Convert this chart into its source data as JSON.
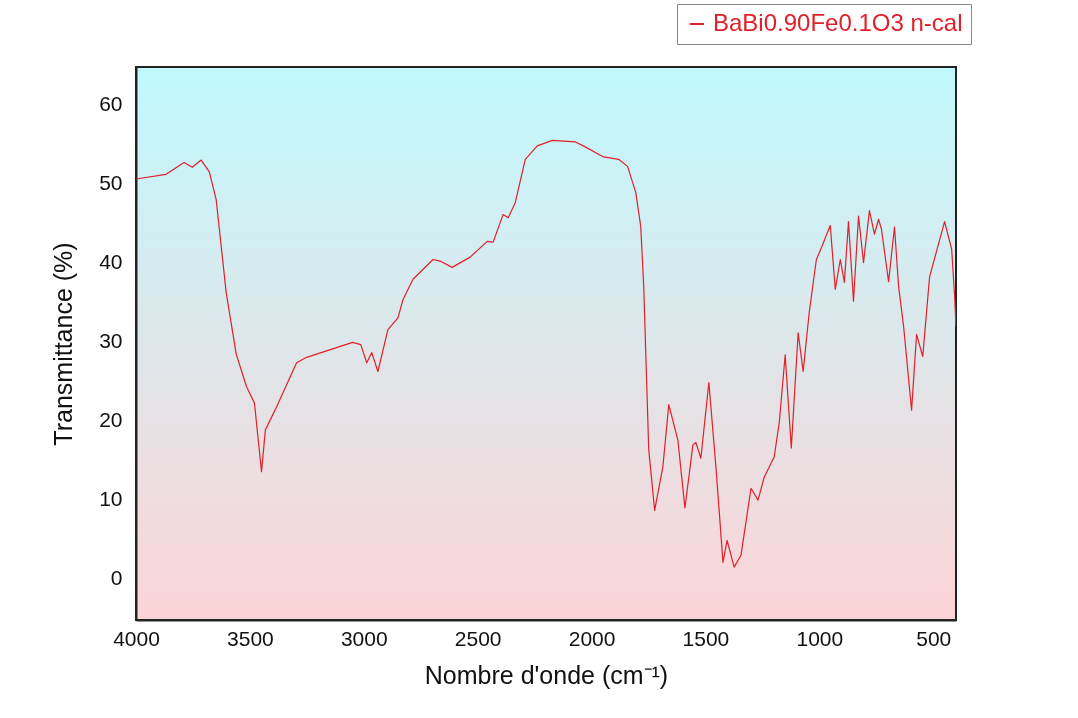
{
  "chart_data": {
    "type": "line",
    "xlabel": "Nombre d'onde (cm⁻¹)",
    "ylabel": "Transmittance (%)",
    "xlim": [
      4000,
      400
    ],
    "xticks": [
      4000,
      3500,
      3000,
      2500,
      2000,
      1500,
      1000,
      500
    ],
    "ylim": [
      -5.3,
      64.8
    ],
    "yticks": [
      0,
      10,
      20,
      30,
      40,
      50,
      60
    ],
    "grid": false,
    "legend": "top right",
    "series": [
      {
        "name": "BaBi0.90Fe0.1O3 n-cal",
        "color": "#e0202a",
        "x": [
          4000,
          3868,
          3789,
          3753,
          3714,
          3678,
          3648,
          3604,
          3560,
          3515,
          3480,
          3449,
          3432,
          3383,
          3295,
          3251,
          3049,
          3013,
          2987,
          2965,
          2938,
          2894,
          2850,
          2828,
          2784,
          2696,
          2665,
          2612,
          2533,
          2458,
          2432,
          2401,
          2388,
          2366,
          2335,
          2291,
          2238,
          2172,
          2071,
          2036,
          1947,
          1881,
          1842,
          1806,
          1784,
          1771,
          1749,
          1723,
          1687,
          1661,
          1621,
          1590,
          1555,
          1542,
          1520,
          1485,
          1454,
          1423,
          1405,
          1374,
          1344,
          1300,
          1269,
          1242,
          1198,
          1176,
          1150,
          1123,
          1093,
          1071,
          1044,
          1013,
          991,
          952,
          930,
          908,
          890,
          872,
          850,
          828,
          806,
          780,
          758,
          740,
          727,
          696,
          670,
          652,
          630,
          595,
          573,
          546,
          516,
          450,
          419,
          406,
          400
        ],
        "values": [
          50.6,
          51.2,
          52.7,
          52.1,
          53.0,
          51.5,
          48.0,
          36.2,
          28.4,
          24.3,
          22.2,
          13.5,
          18.8,
          21.7,
          27.3,
          28.0,
          29.9,
          29.6,
          27.3,
          28.6,
          26.2,
          31.5,
          33.0,
          35.3,
          37.9,
          40.4,
          40.2,
          39.4,
          40.7,
          42.7,
          42.6,
          45.1,
          46.1,
          45.7,
          47.6,
          53.1,
          54.8,
          55.5,
          55.3,
          54.8,
          53.4,
          53.1,
          52.2,
          48.9,
          44.6,
          37.0,
          16.3,
          8.6,
          14.1,
          22.0,
          17.5,
          8.9,
          16.9,
          17.2,
          15.2,
          24.8,
          14.1,
          2.0,
          4.8,
          1.4,
          2.9,
          11.4,
          9.9,
          12.8,
          15.4,
          19.7,
          28.3,
          16.5,
          31.1,
          26.2,
          33.8,
          40.4,
          41.9,
          44.7,
          36.6,
          40.4,
          37.5,
          45.2,
          35.1,
          45.9,
          40.0,
          46.6,
          43.6,
          45.5,
          44.2,
          37.6,
          44.5,
          37.0,
          31.9,
          21.3,
          30.9,
          28.1,
          38.2,
          45.2,
          41.7,
          35.7,
          31.9
        ]
      }
    ]
  }
}
